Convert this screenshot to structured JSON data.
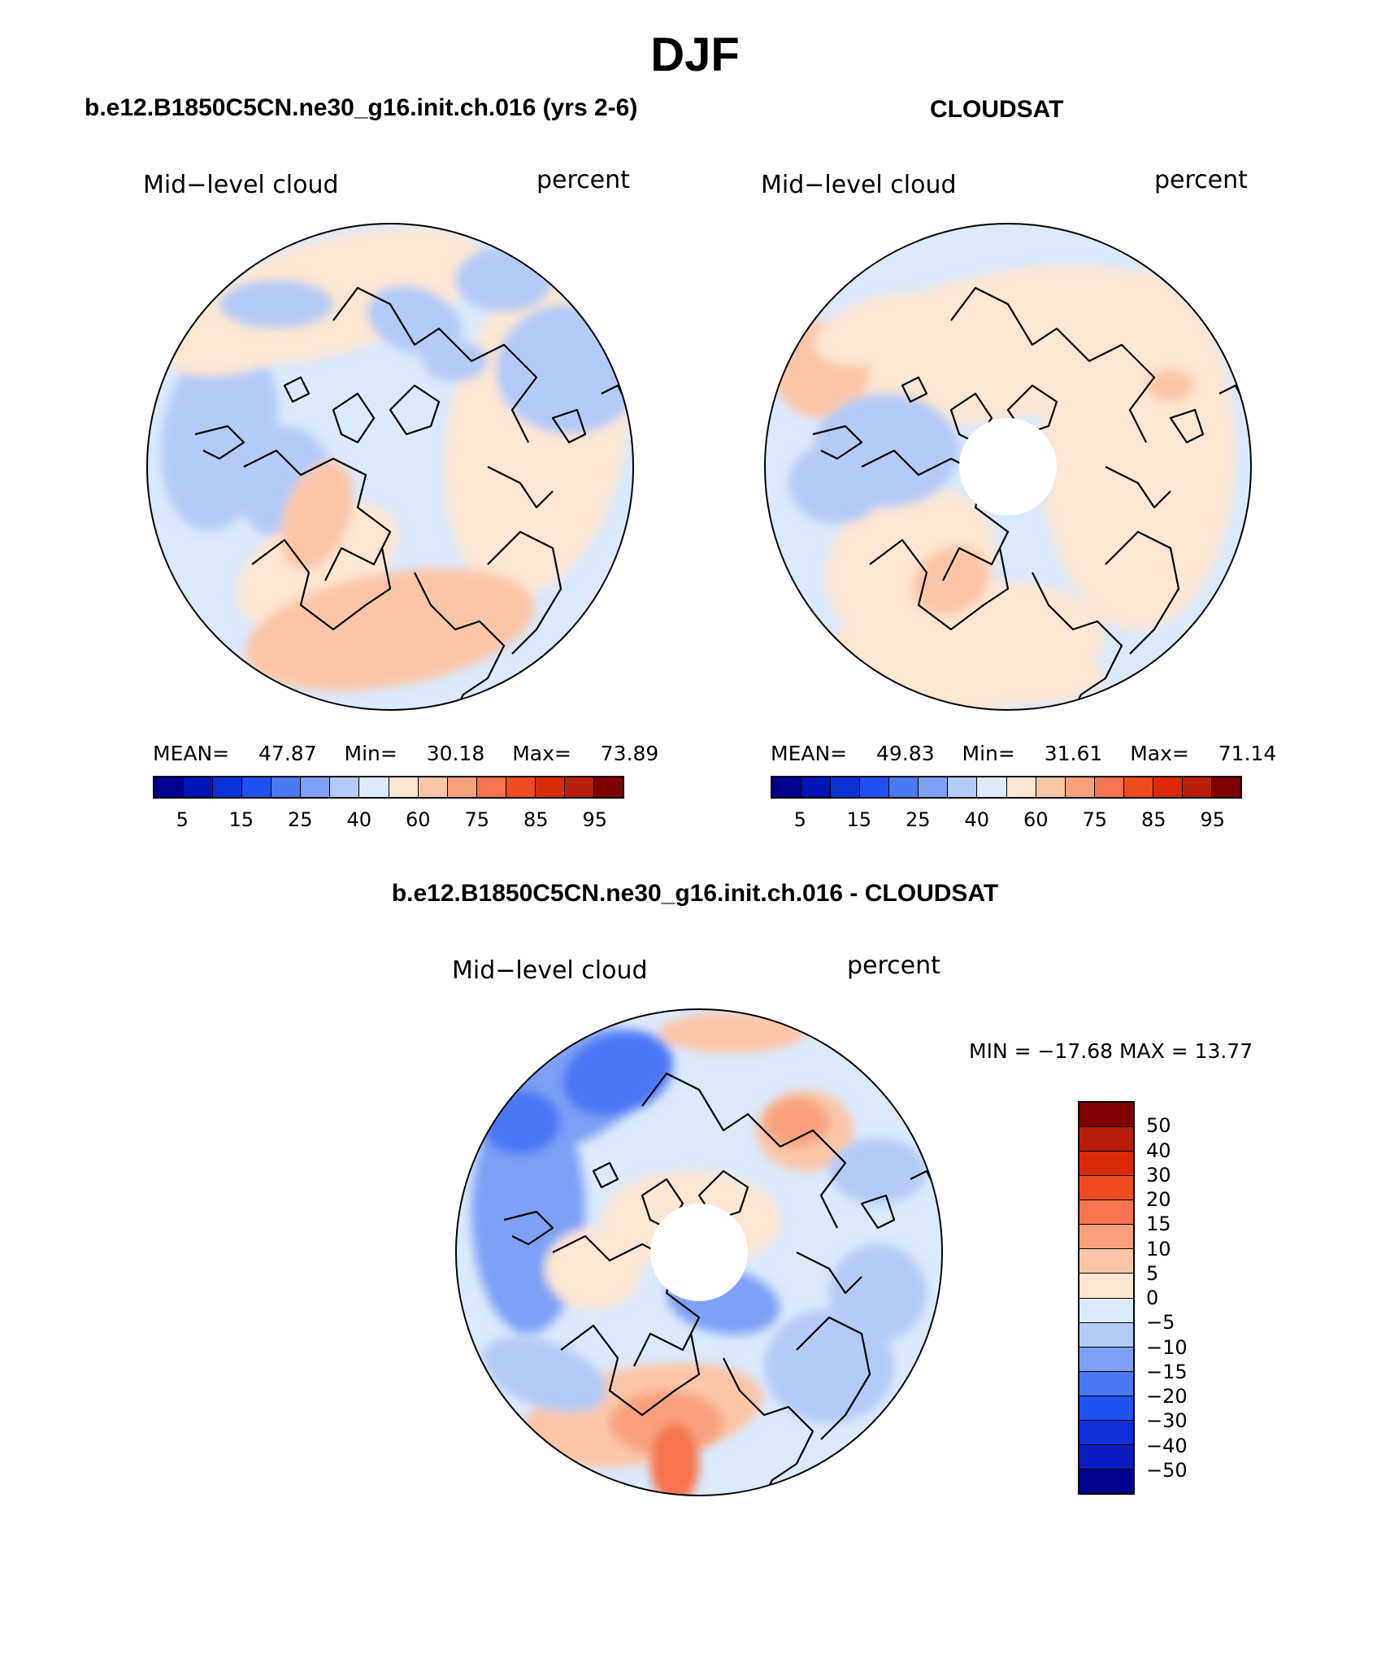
{
  "title": "DJF",
  "panels": [
    {
      "id": "model",
      "title": "b.e12.B1850C5CN.ne30_g16.init.ch.016 (yrs 2-6)",
      "left_label": "Mid−level cloud",
      "right_label": "percent",
      "stats": {
        "mean_label": "MEAN=",
        "mean": "47.87",
        "min_label": "Min=",
        "min": "30.18",
        "max_label": "Max=",
        "max": "73.89"
      },
      "field": "model"
    },
    {
      "id": "obs",
      "title": "CLOUDSAT",
      "left_label": "Mid−level cloud",
      "right_label": "percent",
      "stats": {
        "mean_label": "MEAN=",
        "mean": "49.83",
        "min_label": "Min=",
        "min": "31.61",
        "max_label": "Max=",
        "max": "71.14"
      },
      "field": "obs"
    }
  ],
  "diff_panel": {
    "title": "b.e12.B1850C5CN.ne30_g16.init.ch.016 - CLOUDSAT",
    "left_label": "Mid−level cloud",
    "right_label": "percent",
    "minmax_text": "MIN = −17.68 MAX =   13.77"
  },
  "colorbar_abs": {
    "colors": [
      "#00008f",
      "#0015b5",
      "#0a30d8",
      "#1f52f2",
      "#4b78f5",
      "#7ea1f5",
      "#b2cbf7",
      "#dae9fb",
      "#fde6d2",
      "#fbc6a8",
      "#f7a17c",
      "#f67450",
      "#f04a20",
      "#db2a0a",
      "#b71f0a",
      "#7f0000"
    ],
    "tick_labels": [
      "5",
      "15",
      "25",
      "40",
      "60",
      "75",
      "85",
      "95"
    ],
    "tick_boundaries": [
      1,
      3,
      5,
      7,
      9,
      11,
      13,
      15
    ]
  },
  "colorbar_diff": {
    "colors": [
      "#00008f",
      "#0a1cc0",
      "#0f2edc",
      "#1f52f2",
      "#4b78f5",
      "#7ea1f5",
      "#b2cbf7",
      "#dae9fb",
      "#fde6d2",
      "#fbc6a8",
      "#f7a17c",
      "#f67450",
      "#f04a20",
      "#db2a0a",
      "#b71f0a",
      "#7f0000"
    ],
    "tick_labels": [
      "−50",
      "−40",
      "−30",
      "−20",
      "−15",
      "−10",
      "−5",
      "0",
      "5",
      "10",
      "15",
      "20",
      "30",
      "40",
      "50"
    ]
  }
}
